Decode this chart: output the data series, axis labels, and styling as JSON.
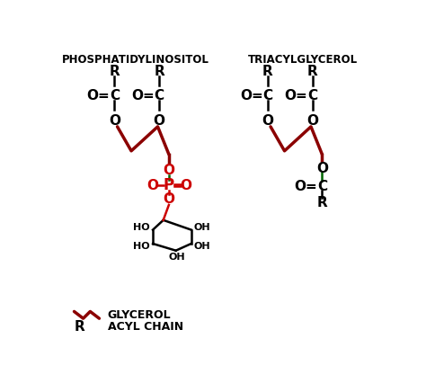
{
  "bg_color": "#ffffff",
  "dark_red": "#8B0000",
  "red": "#CC0000",
  "green": "#006400",
  "black": "#000000",
  "label_phosphatidylinositol": "PHOSPHATIDYLINOSITOL",
  "label_triacylglycerol": "TRIACYLGLYCEROL",
  "legend_glycerol": "GLYCEROL",
  "legend_acyl": "ACYL CHAIN"
}
